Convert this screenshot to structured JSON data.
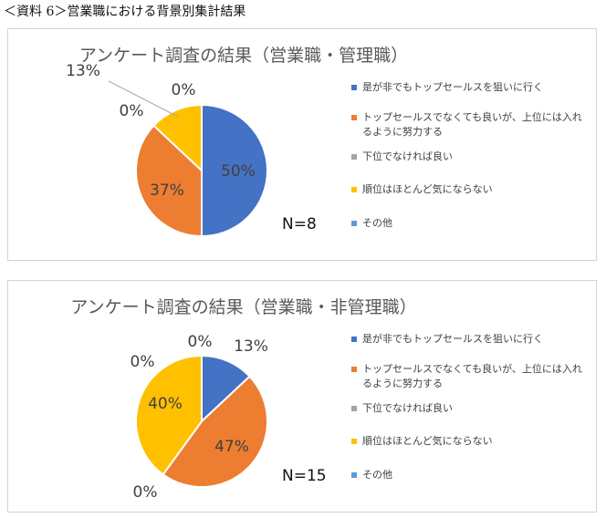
{
  "page": {
    "title": "＜資料 6＞営業職における背景別集計結果"
  },
  "legend": [
    {
      "label": "是が非でもトップセールスを狙いに行く",
      "color": "#4472C4"
    },
    {
      "label": "トップセールスでなくても良いが、上位には入れるように努力する",
      "color": "#ED7D31"
    },
    {
      "label": "下位でなければ良い",
      "color": "#A5A5A5"
    },
    {
      "label": "順位はほとんど気にならない",
      "color": "#FFC000"
    },
    {
      "label": "その他",
      "color": "#5B9BD5"
    }
  ],
  "chart_data": [
    {
      "type": "pie",
      "title": "アンケート調査の結果（営業職・管理職）",
      "note": "N=8",
      "categories": [
        "是が非でもトップセールスを狙いに行く",
        "トップセールスでなくても良いが、上位には入れるように努力する",
        "下位でなければ良い",
        "順位はほとんど気にならない",
        "その他"
      ],
      "values": [
        50,
        37,
        0,
        13,
        0
      ],
      "data_labels": [
        "50%",
        "37%",
        "0%",
        "13%",
        "0%"
      ],
      "colors": [
        "#4472C4",
        "#ED7D31",
        "#A5A5A5",
        "#FFC000",
        "#5B9BD5"
      ],
      "legend_position": "right"
    },
    {
      "type": "pie",
      "title": "アンケート調査の結果（営業職・非管理職）",
      "note": "N=15",
      "categories": [
        "是が非でもトップセールスを狙いに行く",
        "トップセールスでなくても良いが、上位には入れるように努力する",
        "下位でなければ良い",
        "順位はほとんど気にならない",
        "その他"
      ],
      "values": [
        13,
        47,
        0,
        40,
        0
      ],
      "data_labels": [
        "13%",
        "47%",
        "0%",
        "40%",
        "0%"
      ],
      "colors": [
        "#4472C4",
        "#ED7D31",
        "#A5A5A5",
        "#FFC000",
        "#5B9BD5"
      ],
      "legend_position": "right"
    }
  ]
}
